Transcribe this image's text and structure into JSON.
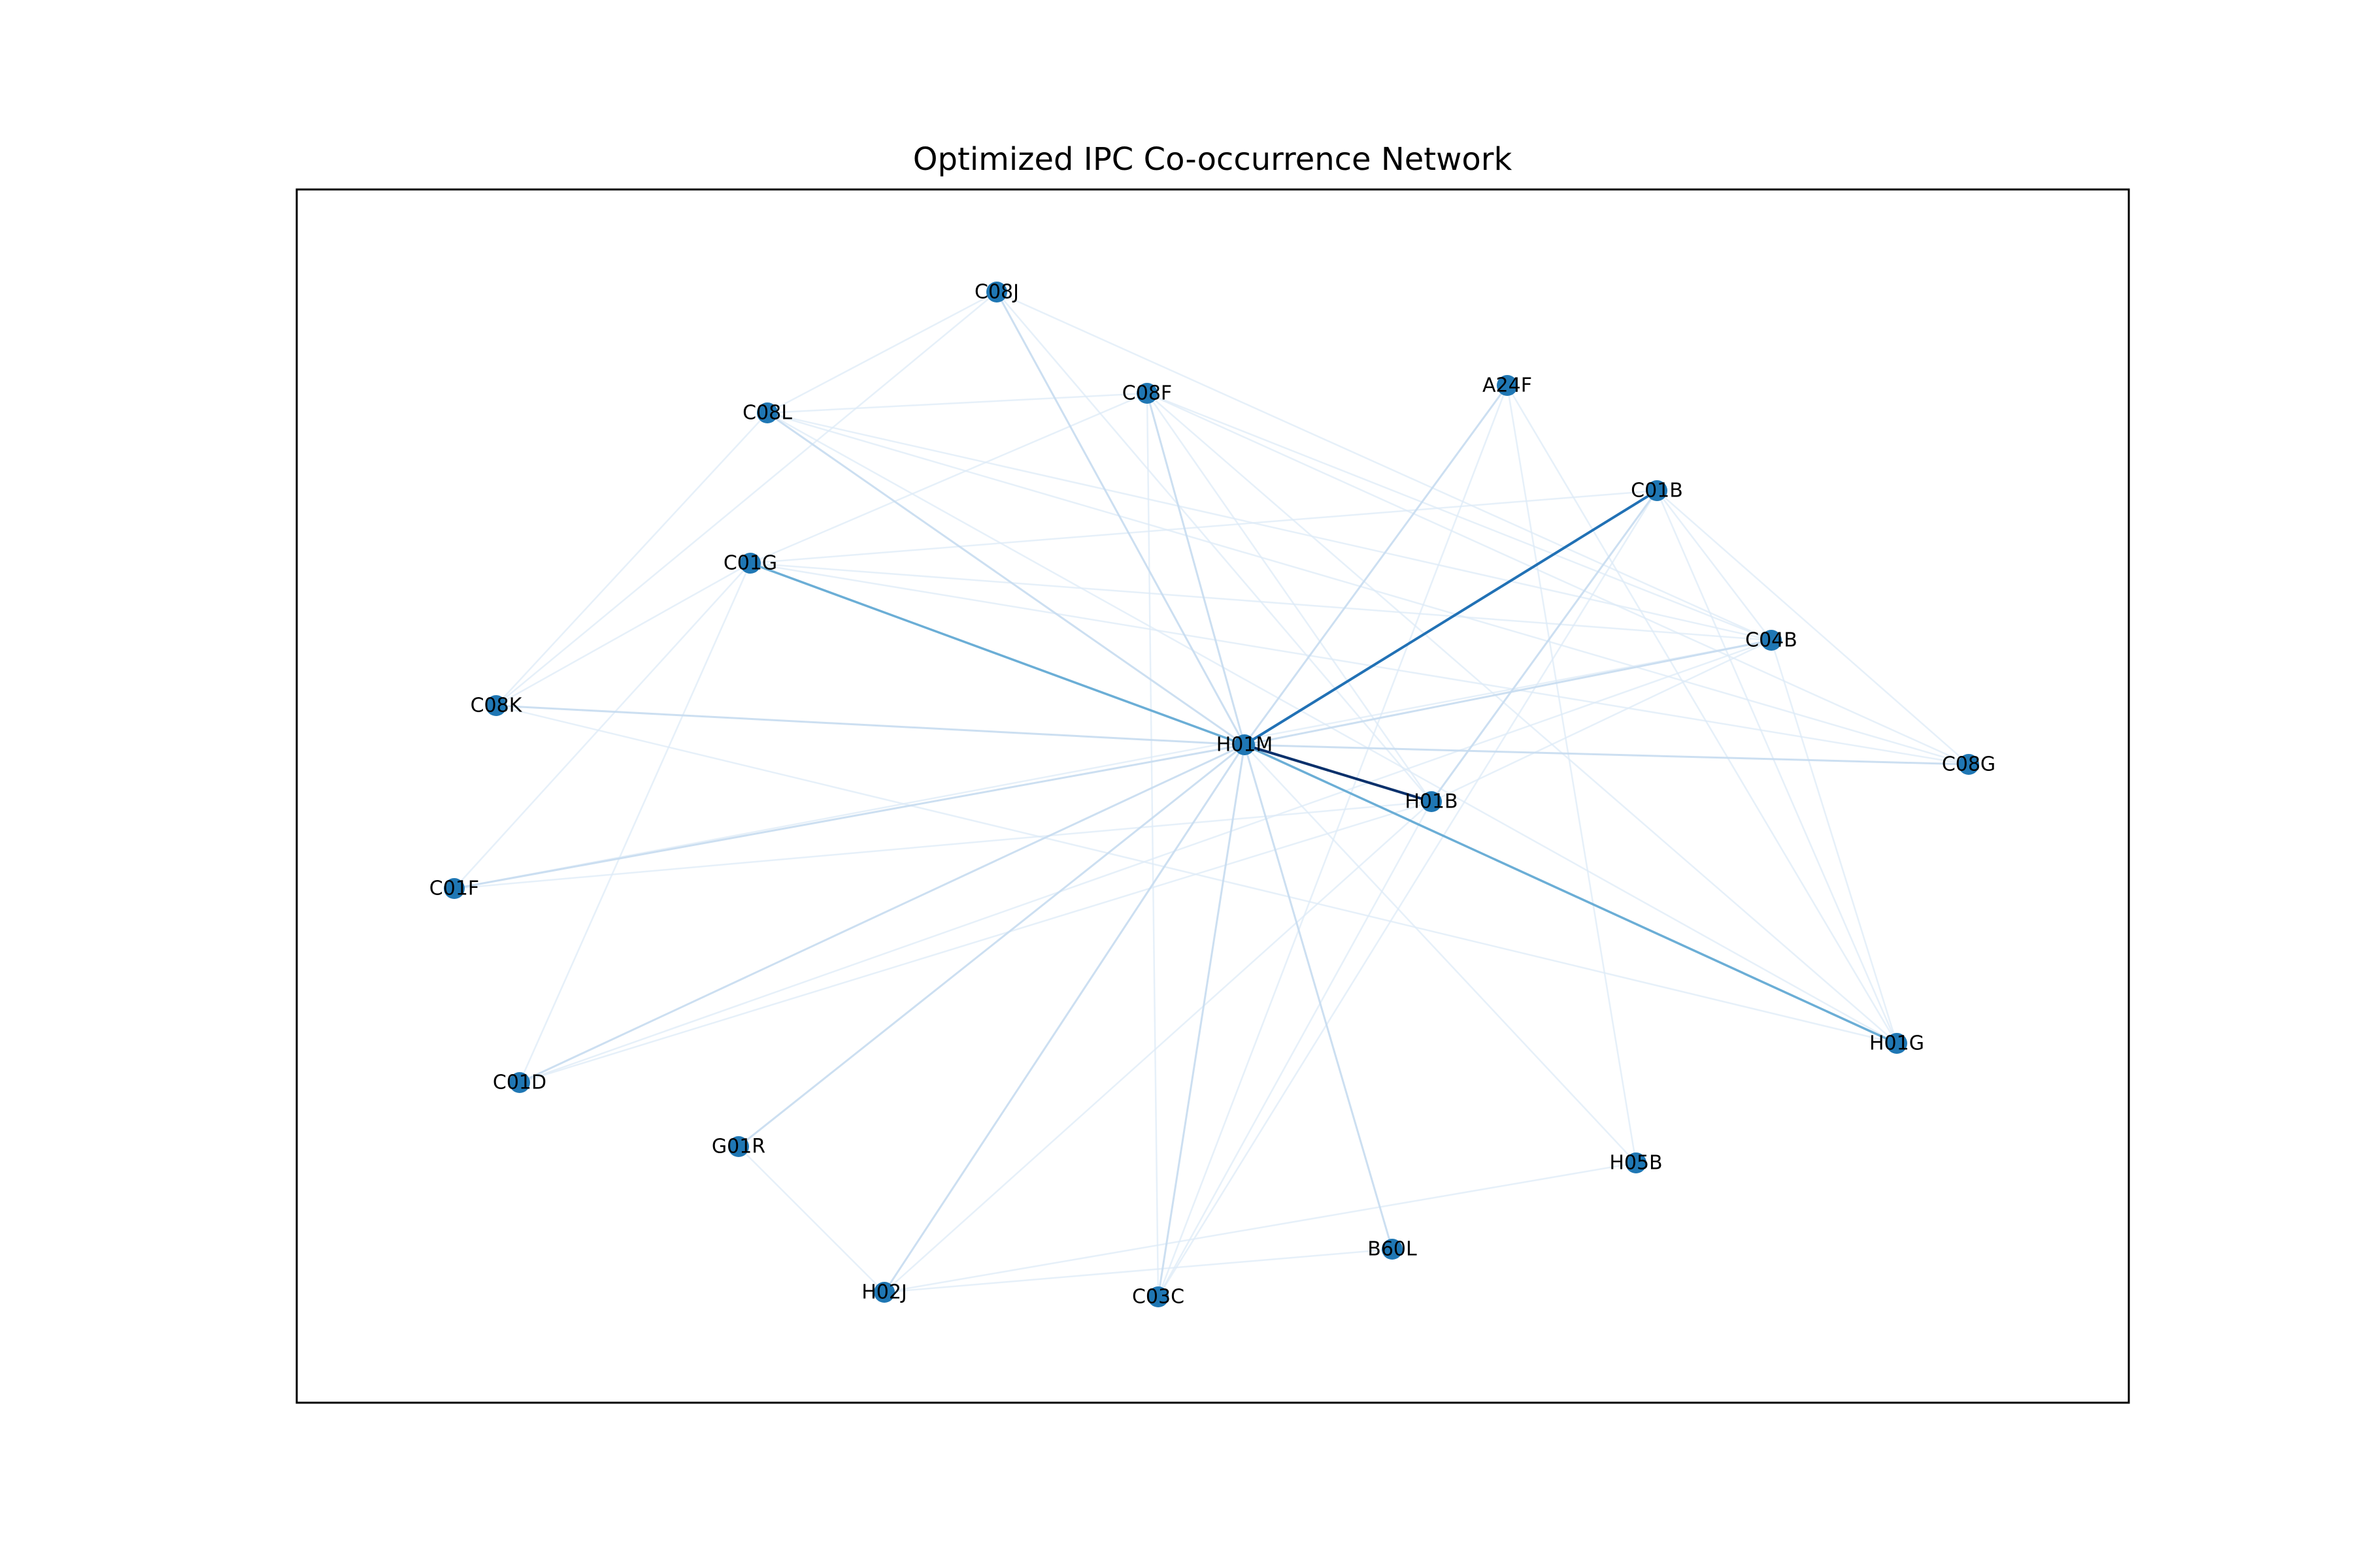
{
  "title": "Optimized IPC Co-occurrence Network",
  "colors": {
    "node": "#1f77b4",
    "edge_strongest": "#08306b",
    "edge_strong": "#2171b5",
    "edge_medium": "#6baed6",
    "edge_light": "#c6dbef",
    "edge_faint": "#deebf7",
    "frame": "#000000"
  },
  "nodes": [
    {
      "id": "C08J",
      "label": "C08J"
    },
    {
      "id": "C08F",
      "label": "C08F"
    },
    {
      "id": "A24F",
      "label": "A24F"
    },
    {
      "id": "C08L",
      "label": "C08L"
    },
    {
      "id": "C01B",
      "label": "C01B"
    },
    {
      "id": "C01G",
      "label": "C01G"
    },
    {
      "id": "C04B",
      "label": "C04B"
    },
    {
      "id": "C08K",
      "label": "C08K"
    },
    {
      "id": "H01M",
      "label": "H01M"
    },
    {
      "id": "C08G",
      "label": "C08G"
    },
    {
      "id": "H01B",
      "label": "H01B"
    },
    {
      "id": "C01F",
      "label": "C01F"
    },
    {
      "id": "H01G",
      "label": "H01G"
    },
    {
      "id": "C01D",
      "label": "C01D"
    },
    {
      "id": "G01R",
      "label": "G01R"
    },
    {
      "id": "H05B",
      "label": "H05B"
    },
    {
      "id": "B60L",
      "label": "B60L"
    },
    {
      "id": "H02J",
      "label": "H02J"
    },
    {
      "id": "C03C",
      "label": "C03C"
    }
  ],
  "edges": [
    {
      "source": "H01M",
      "target": "H01B",
      "strength": "strongest"
    },
    {
      "source": "H01M",
      "target": "C01B",
      "strength": "strong"
    },
    {
      "source": "H01M",
      "target": "C01G",
      "strength": "medium"
    },
    {
      "source": "H01M",
      "target": "H01G",
      "strength": "medium"
    },
    {
      "source": "H01M",
      "target": "C08L",
      "strength": "light"
    },
    {
      "source": "H01M",
      "target": "C08J",
      "strength": "light"
    },
    {
      "source": "H01M",
      "target": "C08F",
      "strength": "light"
    },
    {
      "source": "H01M",
      "target": "C04B",
      "strength": "light"
    },
    {
      "source": "H01M",
      "target": "C08K",
      "strength": "light"
    },
    {
      "source": "H01M",
      "target": "C08G",
      "strength": "light"
    },
    {
      "source": "H01M",
      "target": "C01F",
      "strength": "light"
    },
    {
      "source": "H01M",
      "target": "C01D",
      "strength": "light"
    },
    {
      "source": "H01M",
      "target": "G01R",
      "strength": "light"
    },
    {
      "source": "H01M",
      "target": "H02J",
      "strength": "light"
    },
    {
      "source": "H01M",
      "target": "C03C",
      "strength": "light"
    },
    {
      "source": "H01M",
      "target": "B60L",
      "strength": "light"
    },
    {
      "source": "H01M",
      "target": "A24F",
      "strength": "light"
    },
    {
      "source": "H01M",
      "target": "H05B",
      "strength": "faint"
    },
    {
      "source": "H01B",
      "target": "C01B",
      "strength": "light"
    },
    {
      "source": "H01B",
      "target": "C04B",
      "strength": "faint"
    },
    {
      "source": "H01B",
      "target": "C01F",
      "strength": "faint"
    },
    {
      "source": "H01B",
      "target": "C01D",
      "strength": "faint"
    },
    {
      "source": "H01B",
      "target": "C03C",
      "strength": "faint"
    },
    {
      "source": "H01B",
      "target": "C08F",
      "strength": "faint"
    },
    {
      "source": "H01B",
      "target": "H02J",
      "strength": "faint"
    },
    {
      "source": "C01G",
      "target": "C01B",
      "strength": "faint"
    },
    {
      "source": "C01G",
      "target": "C04B",
      "strength": "faint"
    },
    {
      "source": "C01G",
      "target": "C08F",
      "strength": "faint"
    },
    {
      "source": "C01G",
      "target": "C08K",
      "strength": "faint"
    },
    {
      "source": "C01G",
      "target": "C01F",
      "strength": "faint"
    },
    {
      "source": "C01G",
      "target": "C01D",
      "strength": "faint"
    },
    {
      "source": "C01G",
      "target": "C08G",
      "strength": "faint"
    },
    {
      "source": "C08L",
      "target": "C08F",
      "strength": "faint"
    },
    {
      "source": "C08L",
      "target": "C08J",
      "strength": "faint"
    },
    {
      "source": "C08L",
      "target": "C08K",
      "strength": "faint"
    },
    {
      "source": "C08L",
      "target": "C04B",
      "strength": "faint"
    },
    {
      "source": "C08L",
      "target": "C08G",
      "strength": "faint"
    },
    {
      "source": "C08L",
      "target": "H01G",
      "strength": "faint"
    },
    {
      "source": "C08J",
      "target": "C08K",
      "strength": "faint"
    },
    {
      "source": "C08J",
      "target": "C04B",
      "strength": "faint"
    },
    {
      "source": "C08J",
      "target": "H01B",
      "strength": "faint"
    },
    {
      "source": "C08F",
      "target": "C08G",
      "strength": "faint"
    },
    {
      "source": "C08F",
      "target": "H01G",
      "strength": "faint"
    },
    {
      "source": "C08F",
      "target": "C04B",
      "strength": "faint"
    },
    {
      "source": "C08F",
      "target": "C03C",
      "strength": "faint"
    },
    {
      "source": "C08K",
      "target": "H01G",
      "strength": "faint"
    },
    {
      "source": "C01B",
      "target": "C08G",
      "strength": "faint"
    },
    {
      "source": "C01B",
      "target": "H01G",
      "strength": "faint"
    },
    {
      "source": "C01B",
      "target": "C03C",
      "strength": "faint"
    },
    {
      "source": "C01B",
      "target": "C04B",
      "strength": "faint"
    },
    {
      "source": "C04B",
      "target": "C01D",
      "strength": "faint"
    },
    {
      "source": "C04B",
      "target": "H01G",
      "strength": "faint"
    },
    {
      "source": "C04B",
      "target": "C01F",
      "strength": "faint"
    },
    {
      "source": "A24F",
      "target": "H05B",
      "strength": "faint"
    },
    {
      "source": "A24F",
      "target": "H01G",
      "strength": "faint"
    },
    {
      "source": "A24F",
      "target": "C03C",
      "strength": "faint"
    },
    {
      "source": "G01R",
      "target": "H02J",
      "strength": "faint"
    },
    {
      "source": "H02J",
      "target": "B60L",
      "strength": "faint"
    },
    {
      "source": "H02J",
      "target": "H05B",
      "strength": "faint"
    }
  ]
}
